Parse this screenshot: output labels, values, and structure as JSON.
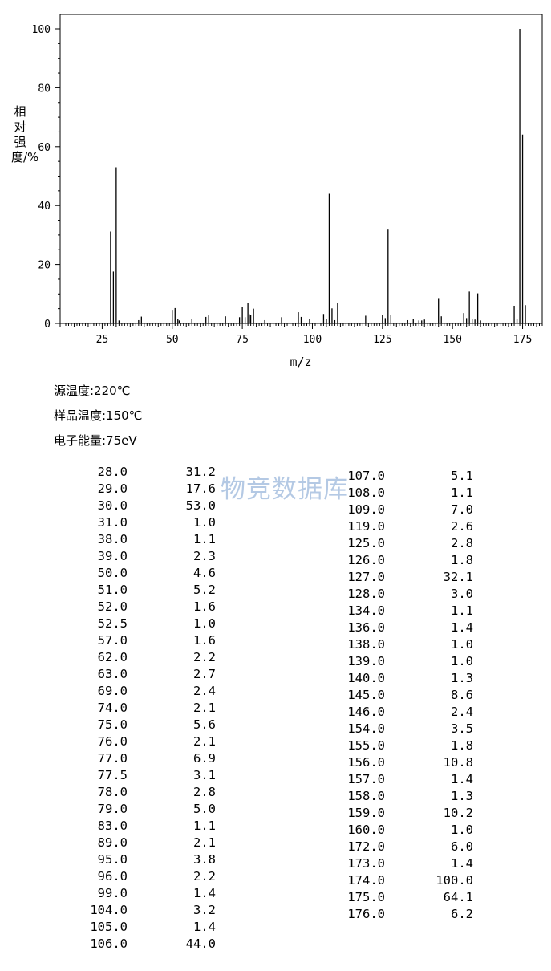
{
  "chart_data": {
    "type": "bar",
    "xlabel": "m/z",
    "ylabel": "相对强度/%",
    "xlim": [
      10,
      182
    ],
    "ylim": [
      0,
      100
    ],
    "xticks": [
      25,
      50,
      75,
      100,
      125,
      150,
      175
    ],
    "yticks": [
      0,
      20,
      40,
      60,
      80,
      100
    ],
    "x": [
      28.0,
      29.0,
      30.0,
      31.0,
      38.0,
      39.0,
      50.0,
      51.0,
      52.0,
      52.5,
      57.0,
      62.0,
      63.0,
      69.0,
      74.0,
      75.0,
      76.0,
      77.0,
      77.5,
      78.0,
      79.0,
      83.0,
      89.0,
      95.0,
      96.0,
      99.0,
      104.0,
      105.0,
      106.0,
      107.0,
      108.0,
      109.0,
      119.0,
      125.0,
      126.0,
      127.0,
      128.0,
      134.0,
      136.0,
      138.0,
      139.0,
      140.0,
      145.0,
      146.0,
      154.0,
      155.0,
      156.0,
      157.0,
      158.0,
      159.0,
      160.0,
      172.0,
      173.0,
      174.0,
      175.0,
      176.0
    ],
    "values": [
      31.2,
      17.6,
      53.0,
      1.0,
      1.1,
      2.3,
      4.6,
      5.2,
      1.6,
      1.0,
      1.6,
      2.2,
      2.7,
      2.4,
      2.1,
      5.6,
      2.1,
      6.9,
      3.1,
      2.8,
      5.0,
      1.1,
      2.1,
      3.8,
      2.2,
      1.4,
      3.2,
      1.4,
      44.0,
      5.1,
      1.1,
      7.0,
      2.6,
      2.8,
      1.8,
      32.1,
      3.0,
      1.1,
      1.4,
      1.0,
      1.0,
      1.3,
      8.6,
      2.4,
      3.5,
      1.8,
      10.8,
      1.4,
      1.3,
      10.2,
      1.0,
      6.0,
      1.4,
      100.0,
      64.1,
      6.2
    ]
  },
  "conditions": {
    "source_temp": "源温度:220℃",
    "sample_temp": "样品温度:150℃",
    "electron_energy": "电子能量:75eV"
  },
  "table": {
    "left": [
      [
        "28.0",
        "31.2"
      ],
      [
        "29.0",
        "17.6"
      ],
      [
        "30.0",
        "53.0"
      ],
      [
        "31.0",
        "1.0"
      ],
      [
        "38.0",
        "1.1"
      ],
      [
        "39.0",
        "2.3"
      ],
      [
        "50.0",
        "4.6"
      ],
      [
        "51.0",
        "5.2"
      ],
      [
        "52.0",
        "1.6"
      ],
      [
        "52.5",
        "1.0"
      ],
      [
        "57.0",
        "1.6"
      ],
      [
        "62.0",
        "2.2"
      ],
      [
        "63.0",
        "2.7"
      ],
      [
        "69.0",
        "2.4"
      ],
      [
        "74.0",
        "2.1"
      ],
      [
        "75.0",
        "5.6"
      ],
      [
        "76.0",
        "2.1"
      ],
      [
        "77.0",
        "6.9"
      ],
      [
        "77.5",
        "3.1"
      ],
      [
        "78.0",
        "2.8"
      ],
      [
        "79.0",
        "5.0"
      ],
      [
        "83.0",
        "1.1"
      ],
      [
        "89.0",
        "2.1"
      ],
      [
        "95.0",
        "3.8"
      ],
      [
        "96.0",
        "2.2"
      ],
      [
        "99.0",
        "1.4"
      ],
      [
        "104.0",
        "3.2"
      ],
      [
        "105.0",
        "1.4"
      ],
      [
        "106.0",
        "44.0"
      ]
    ],
    "right": [
      [
        "107.0",
        "5.1"
      ],
      [
        "108.0",
        "1.1"
      ],
      [
        "109.0",
        "7.0"
      ],
      [
        "119.0",
        "2.6"
      ],
      [
        "125.0",
        "2.8"
      ],
      [
        "126.0",
        "1.8"
      ],
      [
        "127.0",
        "32.1"
      ],
      [
        "128.0",
        "3.0"
      ],
      [
        "134.0",
        "1.1"
      ],
      [
        "136.0",
        "1.4"
      ],
      [
        "138.0",
        "1.0"
      ],
      [
        "139.0",
        "1.0"
      ],
      [
        "140.0",
        "1.3"
      ],
      [
        "145.0",
        "8.6"
      ],
      [
        "146.0",
        "2.4"
      ],
      [
        "154.0",
        "3.5"
      ],
      [
        "155.0",
        "1.8"
      ],
      [
        "156.0",
        "10.8"
      ],
      [
        "157.0",
        "1.4"
      ],
      [
        "158.0",
        "1.3"
      ],
      [
        "159.0",
        "10.2"
      ],
      [
        "160.0",
        "1.0"
      ],
      [
        "172.0",
        "6.0"
      ],
      [
        "173.0",
        "1.4"
      ],
      [
        "174.0",
        "100.0"
      ],
      [
        "175.0",
        "64.1"
      ],
      [
        "176.0",
        "6.2"
      ]
    ]
  },
  "watermark": "物竞数据库"
}
